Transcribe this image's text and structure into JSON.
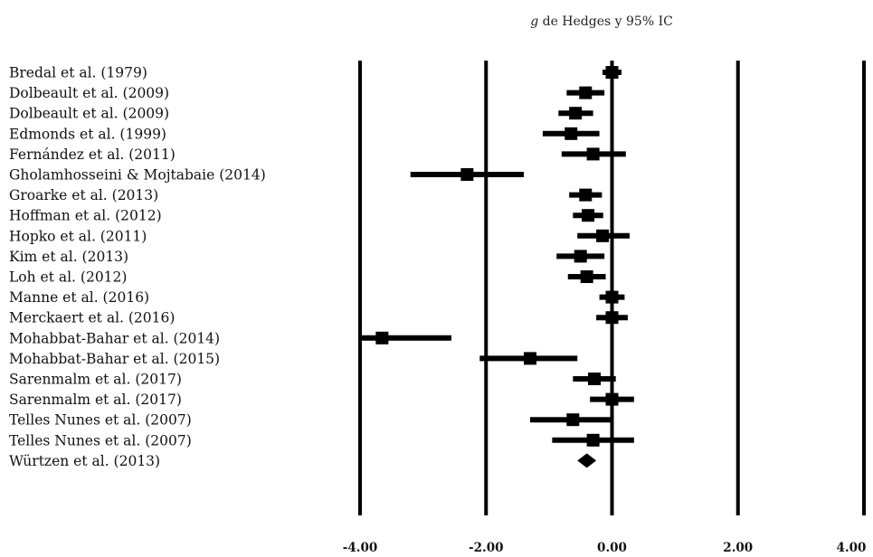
{
  "chart_data": {
    "type": "forest",
    "title_italic": "g",
    "title_rest": " de Hedges y 95% IC",
    "xlim": [
      -4,
      4
    ],
    "x_ticks": [
      {
        "value": -4,
        "label": "-4.00"
      },
      {
        "value": -2,
        "label": "-2.00"
      },
      {
        "value": 0,
        "label": "0.00"
      },
      {
        "value": 2,
        "label": "2.00"
      },
      {
        "value": 4,
        "label": "4.00"
      }
    ],
    "studies": [
      {
        "label": "Bredal et al. (1979)",
        "g": 0.0,
        "lower": -0.15,
        "upper": 0.15
      },
      {
        "label": "Dolbeault et al. (2009)",
        "g": -0.42,
        "lower": -0.72,
        "upper": -0.12
      },
      {
        "label": "Dolbeault et al. (2009)",
        "g": -0.58,
        "lower": -0.85,
        "upper": -0.3
      },
      {
        "label": "Edmonds et al. (1999)",
        "g": -0.65,
        "lower": -1.1,
        "upper": -0.2
      },
      {
        "label": "Fernández et al. (2011)",
        "g": -0.3,
        "lower": -0.8,
        "upper": 0.22
      },
      {
        "label": "Gholamhosseini & Mojtabaie (2014)",
        "g": -2.3,
        "lower": -3.2,
        "upper": -1.4
      },
      {
        "label": "Groarke et al. (2013)",
        "g": -0.42,
        "lower": -0.68,
        "upper": -0.16
      },
      {
        "label": "Hoffman et al. (2012)",
        "g": -0.38,
        "lower": -0.62,
        "upper": -0.14
      },
      {
        "label": "Hopko et al. (2011)",
        "g": -0.15,
        "lower": -0.55,
        "upper": 0.28
      },
      {
        "label": "Kim et al. (2013)",
        "g": -0.5,
        "lower": -0.88,
        "upper": -0.12
      },
      {
        "label": "Loh et al. (2012)",
        "g": -0.4,
        "lower": -0.7,
        "upper": -0.1
      },
      {
        "label": "Manne et al. (2016)",
        "g": 0.0,
        "lower": -0.2,
        "upper": 0.2
      },
      {
        "label": "Merckaert et al. (2016)",
        "g": 0.0,
        "lower": -0.25,
        "upper": 0.25
      },
      {
        "label": "Mohabbat-Bahar et al. (2014)",
        "g": -3.65,
        "lower": -4.0,
        "upper": -2.55
      },
      {
        "label": "Mohabbat-Bahar et al. (2015)",
        "g": -1.3,
        "lower": -2.1,
        "upper": -0.55
      },
      {
        "label": "Sarenmalm et al. (2017)",
        "g": -0.28,
        "lower": -0.62,
        "upper": 0.06
      },
      {
        "label": "Sarenmalm et al. (2017)",
        "g": 0.0,
        "lower": -0.35,
        "upper": 0.35
      },
      {
        "label": "Telles Nunes et al. (2007)",
        "g": -0.62,
        "lower": -1.3,
        "upper": 0.0
      },
      {
        "label": "Telles Nunes et al. (2007)",
        "g": -0.3,
        "lower": -0.95,
        "upper": 0.35
      },
      {
        "label": "Würtzen et al. (2013)",
        "g": -0.25,
        "lower": -0.45,
        "upper": -0.05
      }
    ],
    "summary": {
      "g": -0.4,
      "lower": -0.55,
      "upper": -0.25
    }
  }
}
